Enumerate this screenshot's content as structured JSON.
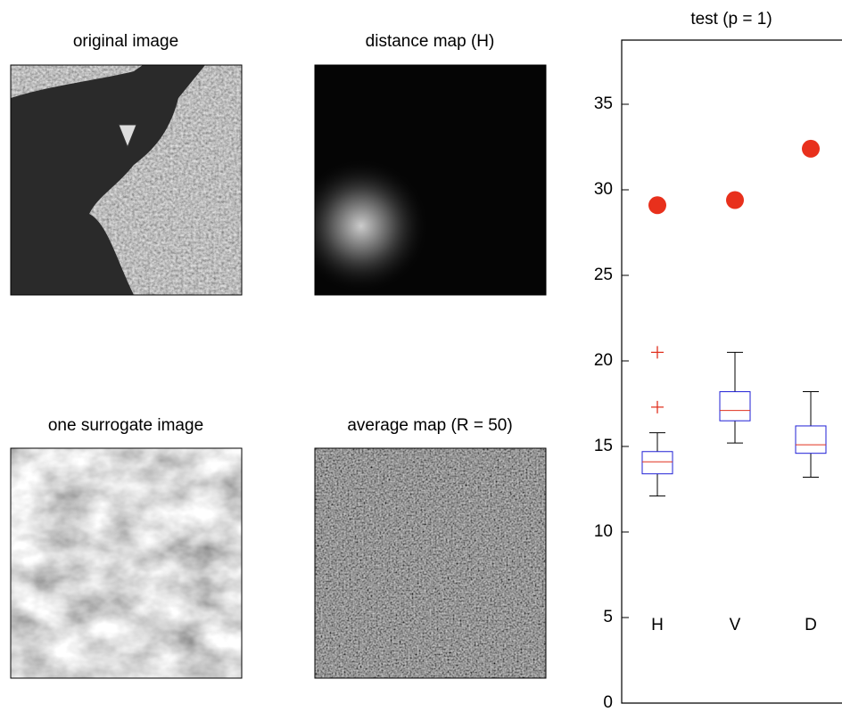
{
  "images": [
    {
      "title": "original image"
    },
    {
      "title": "distance map (H)"
    },
    {
      "title": "one surrogate image"
    },
    {
      "title": "average map (R = 50)"
    }
  ],
  "chart_data": {
    "type": "box",
    "title": "test (p = 1)",
    "categories": [
      "H",
      "V",
      "D"
    ],
    "ylim": [
      0,
      38.75
    ],
    "yticks": [
      0,
      5,
      10,
      15,
      20,
      25,
      30,
      35
    ],
    "box_color": "#1f1fd6",
    "median_color": "#e0301e",
    "whisker_color": "#000000",
    "boxes": [
      {
        "whisker_low": 12.1,
        "q1": 13.4,
        "median": 14.1,
        "q3": 14.7,
        "whisker_high": 15.8,
        "outliers": [
          17.3,
          20.5
        ]
      },
      {
        "whisker_low": 15.2,
        "q1": 16.5,
        "median": 17.1,
        "q3": 18.2,
        "whisker_high": 20.5,
        "outliers": []
      },
      {
        "whisker_low": 13.2,
        "q1": 14.6,
        "median": 15.1,
        "q3": 16.2,
        "whisker_high": 18.2,
        "outliers": []
      }
    ],
    "points": {
      "values": [
        29.1,
        29.4,
        32.4
      ],
      "color": "#e8301c"
    }
  }
}
